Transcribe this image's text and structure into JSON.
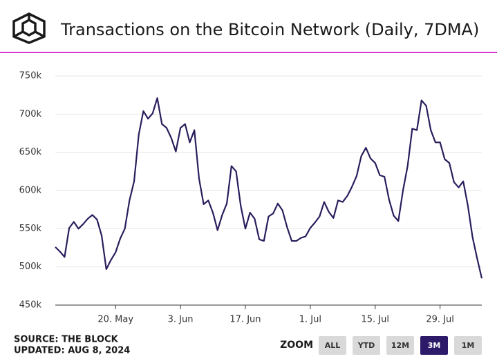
{
  "header": {
    "title": "Transactions on the Bitcoin Network (Daily, 7DMA)"
  },
  "chart_data": {
    "type": "line",
    "x": [
      "2024-05-07",
      "2024-05-08",
      "2024-05-09",
      "2024-05-10",
      "2024-05-11",
      "2024-05-12",
      "2024-05-13",
      "2024-05-14",
      "2024-05-15",
      "2024-05-16",
      "2024-05-17",
      "2024-05-18",
      "2024-05-19",
      "2024-05-20",
      "2024-05-21",
      "2024-05-22",
      "2024-05-23",
      "2024-05-24",
      "2024-05-25",
      "2024-05-26",
      "2024-05-27",
      "2024-05-28",
      "2024-05-29",
      "2024-05-30",
      "2024-05-31",
      "2024-06-01",
      "2024-06-02",
      "2024-06-03",
      "2024-06-04",
      "2024-06-05",
      "2024-06-06",
      "2024-06-07",
      "2024-06-08",
      "2024-06-09",
      "2024-06-10",
      "2024-06-11",
      "2024-06-12",
      "2024-06-13",
      "2024-06-14",
      "2024-06-15",
      "2024-06-16",
      "2024-06-17",
      "2024-06-18",
      "2024-06-19",
      "2024-06-20",
      "2024-06-21",
      "2024-06-22",
      "2024-06-23",
      "2024-06-24",
      "2024-06-25",
      "2024-06-26",
      "2024-06-27",
      "2024-06-28",
      "2024-06-29",
      "2024-06-30",
      "2024-07-01",
      "2024-07-02",
      "2024-07-03",
      "2024-07-04",
      "2024-07-05",
      "2024-07-06",
      "2024-07-07",
      "2024-07-08",
      "2024-07-09",
      "2024-07-10",
      "2024-07-11",
      "2024-07-12",
      "2024-07-13",
      "2024-07-14",
      "2024-07-15",
      "2024-07-16",
      "2024-07-17",
      "2024-07-18",
      "2024-07-19",
      "2024-07-20",
      "2024-07-21",
      "2024-07-22",
      "2024-07-23",
      "2024-07-24",
      "2024-07-25",
      "2024-07-26",
      "2024-07-27",
      "2024-07-28",
      "2024-07-29",
      "2024-07-30",
      "2024-07-31",
      "2024-08-01",
      "2024-08-02",
      "2024-08-03",
      "2024-08-04",
      "2024-08-05",
      "2024-08-06",
      "2024-08-07"
    ],
    "values": [
      526000,
      520000,
      513000,
      551000,
      559000,
      550000,
      556000,
      563000,
      568000,
      562000,
      541000,
      497000,
      509000,
      519000,
      537000,
      550000,
      587000,
      612000,
      673000,
      704000,
      694000,
      701000,
      721000,
      687000,
      682000,
      669000,
      651000,
      682000,
      687000,
      663000,
      679000,
      616000,
      582000,
      587000,
      571000,
      548000,
      568000,
      583000,
      632000,
      625000,
      580000,
      550000,
      571000,
      563000,
      536000,
      534000,
      566000,
      570000,
      583000,
      574000,
      552000,
      534000,
      534000,
      538000,
      540000,
      551000,
      558000,
      566000,
      585000,
      572000,
      564000,
      587000,
      585000,
      593000,
      605000,
      619000,
      645000,
      656000,
      642000,
      636000,
      620000,
      618000,
      588000,
      567000,
      560000,
      600000,
      632000,
      681000,
      679000,
      718000,
      711000,
      679000,
      663000,
      663000,
      641000,
      636000,
      611000,
      604000,
      612000,
      580000,
      539000,
      511000,
      485000
    ],
    "color": "#2b1d5c",
    "xlim": [
      "2024-05-07",
      "2024-08-07"
    ],
    "xticks": [
      {
        "value": "2024-05-20",
        "label": "20. May"
      },
      {
        "value": "2024-06-03",
        "label": "3. Jun"
      },
      {
        "value": "2024-06-17",
        "label": "17. Jun"
      },
      {
        "value": "2024-07-01",
        "label": "1. Jul"
      },
      {
        "value": "2024-07-15",
        "label": "15. Jul"
      },
      {
        "value": "2024-07-29",
        "label": "29. Jul"
      }
    ],
    "ylim": [
      450000,
      750000
    ],
    "yticks": [
      {
        "value": 450000,
        "label": "450k"
      },
      {
        "value": 500000,
        "label": "500k"
      },
      {
        "value": 550000,
        "label": "550k"
      },
      {
        "value": 600000,
        "label": "600k"
      },
      {
        "value": 650000,
        "label": "650k"
      },
      {
        "value": 700000,
        "label": "700k"
      },
      {
        "value": 750000,
        "label": "750k"
      }
    ],
    "grid": true
  },
  "footer": {
    "source": "SOURCE: THE BLOCK",
    "updated": "UPDATED: AUG 8, 2024"
  },
  "zoom": {
    "label": "ZOOM",
    "buttons": [
      "ALL",
      "YTD",
      "12M",
      "3M",
      "1M"
    ],
    "active": "3M"
  }
}
